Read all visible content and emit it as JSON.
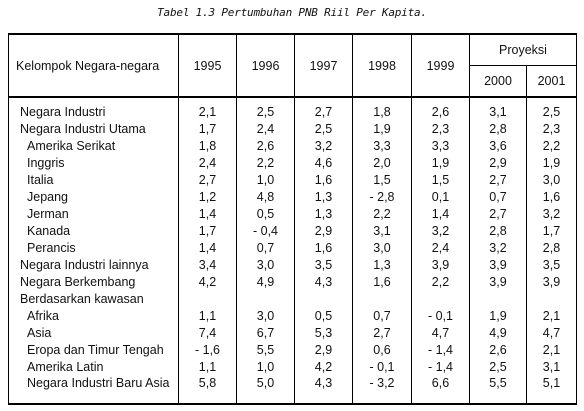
{
  "caption": "Tabel 1.3 Pertumbuhan PNB Riil Per Kapita.",
  "header": {
    "group": "Kelompok Negara-negara",
    "years": [
      "1995",
      "1996",
      "1997",
      "1998",
      "1999"
    ],
    "projection": "Proyeksi",
    "proj_years": [
      "2000",
      "2001"
    ]
  },
  "rows": [
    {
      "name": "Negara Industri",
      "indent": false,
      "v": [
        "2,1",
        "2,5",
        "2,7",
        "1,8",
        "2,6",
        "3,1",
        "2,5"
      ]
    },
    {
      "name": "Negara Industri Utama",
      "indent": false,
      "v": [
        "1,7",
        "2,4",
        "2,5",
        "1,9",
        "2,3",
        "2,8",
        "2,3"
      ]
    },
    {
      "name": "Amerika Serikat",
      "indent": true,
      "v": [
        "1,8",
        "2,6",
        "3,2",
        "3,3",
        "3,3",
        "3,6",
        "2,2"
      ]
    },
    {
      "name": "Inggris",
      "indent": true,
      "v": [
        "2,4",
        "2,2",
        "4,6",
        "2,0",
        "1,9",
        "2,9",
        "1,9"
      ]
    },
    {
      "name": "Italia",
      "indent": true,
      "v": [
        "2,7",
        "1,0",
        "1,6",
        "1,5",
        "1,5",
        "2,7",
        "3,0"
      ]
    },
    {
      "name": "Jepang",
      "indent": true,
      "v": [
        "1,2",
        "4,8",
        "1,3",
        "- 2,8",
        "0,1",
        "0,7",
        "1,6"
      ]
    },
    {
      "name": "Jerman",
      "indent": true,
      "v": [
        "1,4",
        "0,5",
        "1,3",
        "2,2",
        "1,4",
        "2,7",
        "3,2"
      ]
    },
    {
      "name": "Kanada",
      "indent": true,
      "v": [
        "1,7",
        "- 0,4",
        "2,9",
        "3,1",
        "3,2",
        "2,8",
        "1,7"
      ]
    },
    {
      "name": "Perancis",
      "indent": true,
      "v": [
        "1,4",
        "0,7",
        "1,6",
        "3,0",
        "2,4",
        "3,2",
        "2,8"
      ]
    },
    {
      "name": "Negara Industri lainnya",
      "indent": false,
      "v": [
        "3,4",
        "3,0",
        "3,5",
        "1,3",
        "3,9",
        "3,9",
        "3,5"
      ]
    },
    {
      "name": "Negara Berkembang",
      "indent": false,
      "v": [
        "4,2",
        "4,9",
        "4,3",
        "1,6",
        "2,2",
        "3,9",
        "3,9"
      ]
    },
    {
      "name": "Berdasarkan kawasan",
      "indent": false,
      "v": [
        "",
        "",
        "",
        "",
        "",
        "",
        ""
      ]
    },
    {
      "name": "Afrika",
      "indent": true,
      "v": [
        "1,1",
        "3,0",
        "0,5",
        "0,7",
        "- 0,1",
        "1,9",
        "2,1"
      ]
    },
    {
      "name": "Asia",
      "indent": true,
      "v": [
        "7,4",
        "6,7",
        "5,3",
        "2,7",
        "4,7",
        "4,9",
        "4,7"
      ]
    },
    {
      "name": "Eropa dan Timur Tengah",
      "indent": true,
      "v": [
        "- 1,6",
        "5,5",
        "2,9",
        "0,6",
        "- 1,4",
        "2,6",
        "2,1"
      ]
    },
    {
      "name": "Amerika Latin",
      "indent": true,
      "v": [
        "1,1",
        "1,0",
        "4,2",
        "- 0,1",
        "- 1,4",
        "2,5",
        "3,1"
      ]
    },
    {
      "name": "Negara Industri Baru Asia",
      "indent": true,
      "v": [
        "5,8",
        "5,0",
        "4,3",
        "- 3,2",
        "6,6",
        "5,5",
        "5,1"
      ]
    }
  ]
}
